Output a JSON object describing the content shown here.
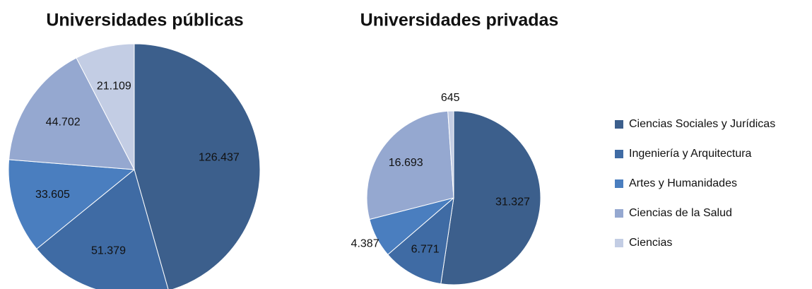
{
  "chart_data": [
    {
      "type": "pie",
      "title": "Universidades públicas",
      "categories": [
        "Ciencias Sociales y Jurídicas",
        "Ingeniería y Arquitectura",
        "Artes y Humanidades",
        "Ciencias de la Salud",
        "Ciencias"
      ],
      "values": [
        126437,
        51379,
        33605,
        44702,
        21109
      ],
      "value_labels": [
        "126.437",
        "51.379",
        "33.605",
        "44.702",
        "21.109"
      ],
      "colors": [
        "#3c5f8c",
        "#3f6ba4",
        "#4a7ebf",
        "#95a8d0",
        "#c3cde4"
      ],
      "legend": "right"
    },
    {
      "type": "pie",
      "title": "Universidades privadas",
      "categories": [
        "Ciencias Sociales y Jurídicas",
        "Ingeniería y Arquitectura",
        "Artes y Humanidades",
        "Ciencias de la Salud",
        "Ciencias"
      ],
      "values": [
        31327,
        6771,
        4387,
        16693,
        645
      ],
      "value_labels": [
        "31.327",
        "6.771",
        "4.387",
        "16.693",
        "645"
      ],
      "colors": [
        "#3c5f8c",
        "#3f6ba4",
        "#4a7ebf",
        "#95a8d0",
        "#c3cde4"
      ],
      "legend": "right"
    }
  ]
}
